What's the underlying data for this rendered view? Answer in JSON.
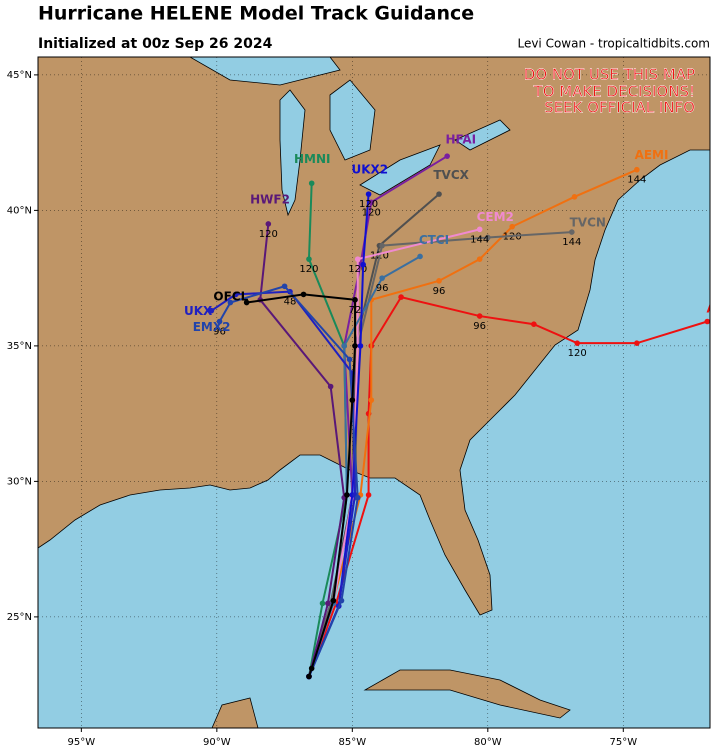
{
  "chart_data": {
    "type": "track-map",
    "title": "Hurricane HELENE Model Track Guidance",
    "subtitle": "Initialized at 00z Sep 26 2024",
    "credit": "Levi Cowan - tropicaltidbits.com",
    "warning": [
      "DO NOT USE THIS MAP",
      "TO MAKE DECISIONS!",
      "SEEK OFFICIAL INFO"
    ],
    "xlim": [
      -96.6,
      -71.8
    ],
    "ylim": [
      20.9,
      45.66
    ],
    "xticks": [
      {
        "value": -95,
        "label": "95°W"
      },
      {
        "value": -90,
        "label": "90°W"
      },
      {
        "value": -85,
        "label": "85°W"
      },
      {
        "value": -80,
        "label": "80°W"
      },
      {
        "value": -75,
        "label": "75°W"
      }
    ],
    "yticks": [
      {
        "value": 25,
        "label": "25°N"
      },
      {
        "value": 30,
        "label": "30°N"
      },
      {
        "value": 35,
        "label": "35°N"
      },
      {
        "value": 40,
        "label": "40°N"
      },
      {
        "value": 45,
        "label": "45°N"
      }
    ],
    "series": [
      {
        "name": "AVNI",
        "color": "#ee1111",
        "x": [
          -86.6,
          -85.6,
          -84.4,
          -84.4,
          -84.3,
          -83.2,
          -80.3,
          -78.3,
          -76.7,
          -74.5,
          -71.9
        ],
        "values": [
          22.8,
          25.5,
          29.5,
          32.5,
          35.0,
          36.8,
          36.1,
          35.8,
          35.1,
          35.1,
          35.9
        ],
        "hours": [
          null,
          null,
          null,
          null,
          null,
          null,
          96,
          null,
          120,
          null,
          null
        ]
      },
      {
        "name": "AEMI",
        "color": "#f07010",
        "x": [
          -86.6,
          -85.7,
          -84.7,
          -84.3,
          -84.3,
          -81.8,
          -80.3,
          -79.1,
          -76.8,
          -74.5
        ],
        "values": [
          22.8,
          25.6,
          29.5,
          33.0,
          36.7,
          37.4,
          38.2,
          39.4,
          40.5,
          41.5
        ],
        "hours": [
          null,
          null,
          null,
          null,
          null,
          96,
          null,
          120,
          null,
          144
        ]
      },
      {
        "name": "HFAI",
        "color": "#7a1fa0",
        "x": [
          -86.6,
          -85.7,
          -85.0,
          -85.3,
          -84.7,
          -84.3,
          -81.5
        ],
        "values": [
          22.8,
          25.6,
          29.5,
          35.0,
          38.0,
          40.3,
          42.0
        ],
        "hours": [
          null,
          null,
          null,
          null,
          null,
          120,
          null
        ]
      },
      {
        "name": "HMNI",
        "color": "#1a8a5a",
        "x": [
          -86.6,
          -86.1,
          -85.2,
          -85.3,
          -86.6,
          -86.5
        ],
        "values": [
          22.8,
          25.5,
          29.5,
          35.0,
          38.2,
          41.0
        ],
        "hours": [
          null,
          null,
          null,
          null,
          120,
          null
        ]
      },
      {
        "name": "TVCX",
        "color": "#505050",
        "x": [
          -86.6,
          -85.8,
          -85.0,
          -84.9,
          -84.0,
          -81.8
        ],
        "values": [
          22.8,
          25.5,
          29.4,
          35.0,
          38.7,
          40.6
        ],
        "hours": [
          null,
          null,
          null,
          null,
          120,
          null
        ]
      },
      {
        "name": "TVCN",
        "color": "#666666",
        "x": [
          -86.6,
          -85.8,
          -84.9,
          -84.8,
          -83.9,
          -80.0,
          -76.9
        ],
        "values": [
          22.8,
          25.5,
          29.4,
          35.0,
          38.7,
          39.0,
          39.2
        ],
        "hours": [
          null,
          null,
          null,
          null,
          null,
          null,
          144
        ]
      },
      {
        "name": "CEM2",
        "color": "#f08ad0",
        "x": [
          -86.6,
          -85.7,
          -85.0,
          -84.8,
          -84.8,
          -80.3
        ],
        "values": [
          22.8,
          25.5,
          29.4,
          35.0,
          38.2,
          39.3
        ],
        "hours": [
          null,
          null,
          null,
          null,
          120,
          144
        ]
      },
      {
        "name": "CTCI",
        "color": "#3a6fa0",
        "x": [
          -86.6,
          -85.7,
          -85.2,
          -85.3,
          -83.9,
          -82.5
        ],
        "values": [
          22.8,
          25.5,
          29.5,
          35.0,
          37.5,
          38.3
        ],
        "hours": [
          null,
          null,
          null,
          null,
          96,
          null
        ]
      },
      {
        "name": "HWF2",
        "color": "#5a1878",
        "x": [
          -86.6,
          -85.9,
          -85.3,
          -85.8,
          -88.4,
          -88.1
        ],
        "values": [
          22.8,
          25.5,
          29.4,
          33.5,
          36.7,
          39.5
        ],
        "hours": [
          null,
          null,
          null,
          null,
          null,
          120
        ]
      },
      {
        "name": "UKX2",
        "color": "#1010d0",
        "x": [
          -86.6,
          -85.5,
          -85.0,
          -84.7,
          -84.6,
          -84.4
        ],
        "values": [
          22.8,
          25.4,
          29.5,
          35.0,
          38.0,
          40.6
        ],
        "hours": [
          null,
          null,
          null,
          null,
          null,
          120
        ]
      },
      {
        "name": "UKX",
        "color": "#2020c0",
        "x": [
          -86.6,
          -85.5,
          -84.9,
          -85.0,
          -87.3,
          -89.3,
          -90.2
        ],
        "values": [
          22.8,
          25.4,
          29.5,
          34.0,
          37.0,
          36.9,
          36.3
        ],
        "hours": [
          null,
          null,
          null,
          null,
          48,
          null,
          null
        ]
      },
      {
        "name": "EMX2",
        "color": "#2244aa",
        "x": [
          -86.6,
          -85.4,
          -84.8,
          -85.1,
          -87.5,
          -89.5,
          -89.9
        ],
        "values": [
          22.8,
          25.6,
          29.4,
          34.5,
          37.2,
          36.6,
          35.9
        ],
        "hours": [
          null,
          null,
          null,
          null,
          null,
          null,
          96
        ]
      },
      {
        "name": "OFCL",
        "color": "#000000",
        "x": [
          -86.6,
          -86.5,
          -85.7,
          -85.2,
          -85.0,
          -84.9,
          -84.9,
          -86.8,
          -88.9
        ],
        "values": [
          22.8,
          23.1,
          25.6,
          29.5,
          33.0,
          35.0,
          36.7,
          36.9,
          36.6
        ],
        "hours": [
          null,
          null,
          null,
          null,
          null,
          null,
          72,
          null,
          null
        ]
      }
    ]
  }
}
